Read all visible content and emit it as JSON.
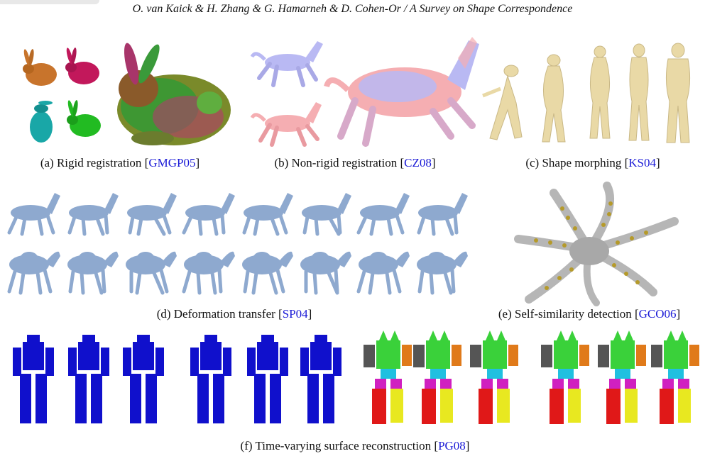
{
  "header": {
    "running_title": "O. van Kaick & H. Zhang & G. Hamarneh & D. Cohen-Or / A Survey on Shape Correspondence"
  },
  "figure": {
    "panels": [
      {
        "caption_prefix": "(a) Rigid registration [",
        "citation": "GMGP05",
        "caption_suffix": "]"
      },
      {
        "caption_prefix": "(b) Non-rigid registration [",
        "citation": "CZ08",
        "caption_suffix": "]"
      },
      {
        "caption_prefix": "(c) Shape morphing [",
        "citation": "KS04",
        "caption_suffix": "]"
      },
      {
        "caption_prefix": "(d) Deformation transfer [",
        "citation": "SP04",
        "caption_suffix": "]"
      },
      {
        "caption_prefix": "(e) Self-similarity detection [",
        "citation": "GCO06",
        "caption_suffix": "]"
      },
      {
        "caption_prefix": "(f) Time-varying surface reconstruction [",
        "citation": "PG08",
        "caption_suffix": "]"
      }
    ]
  },
  "colors": {
    "citation": "#1a1ad6",
    "bunny_orange": "#c8742c",
    "bunny_magenta": "#c2185b",
    "bunny_teal": "#19a7a7",
    "bunny_green": "#22bb22",
    "horse_lavender": "#b9b9f3",
    "horse_pink": "#f5aeb2",
    "morph_beige": "#e9d9a6",
    "deform_blue": "#8ea9cf",
    "octopus_gray": "#b6b6b6",
    "octopus_spot": "#b59a2a",
    "robot_blue": "#1010cc"
  }
}
